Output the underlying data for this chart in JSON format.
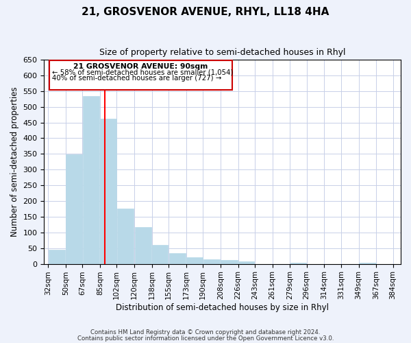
{
  "title": "21, GROSVENOR AVENUE, RHYL, LL18 4HA",
  "subtitle": "Size of property relative to semi-detached houses in Rhyl",
  "xlabel": "Distribution of semi-detached houses by size in Rhyl",
  "ylabel": "Number of semi-detached properties",
  "bar_left_edges": [
    32,
    50,
    67,
    85,
    102,
    120,
    138,
    155,
    173,
    190,
    208,
    226,
    243,
    261,
    279,
    296,
    314,
    331,
    349,
    367
  ],
  "bar_heights": [
    46,
    348,
    535,
    463,
    177,
    118,
    61,
    35,
    21,
    15,
    13,
    8,
    0,
    0,
    3,
    0,
    0,
    0,
    4,
    0
  ],
  "bar_widths": [
    18,
    17,
    18,
    17,
    18,
    18,
    17,
    18,
    17,
    18,
    18,
    17,
    18,
    18,
    17,
    18,
    17,
    18,
    18,
    17
  ],
  "bar_color": "#b8d9e8",
  "bar_edgecolor": "#b8d9e8",
  "marker_x": 90,
  "marker_color": "red",
  "ylim": [
    0,
    650
  ],
  "yticks": [
    0,
    50,
    100,
    150,
    200,
    250,
    300,
    350,
    400,
    450,
    500,
    550,
    600,
    650
  ],
  "xtick_labels": [
    "32sqm",
    "50sqm",
    "67sqm",
    "85sqm",
    "102sqm",
    "120sqm",
    "138sqm",
    "155sqm",
    "173sqm",
    "190sqm",
    "208sqm",
    "226sqm",
    "243sqm",
    "261sqm",
    "279sqm",
    "296sqm",
    "314sqm",
    "331sqm",
    "349sqm",
    "367sqm",
    "384sqm"
  ],
  "xtick_positions": [
    32,
    50,
    67,
    85,
    102,
    120,
    138,
    155,
    173,
    190,
    208,
    226,
    243,
    261,
    279,
    296,
    314,
    331,
    349,
    367,
    384
  ],
  "annotation_title": "21 GROSVENOR AVENUE: 90sqm",
  "annotation_line1": "← 58% of semi-detached houses are smaller (1,054)",
  "annotation_line2": "40% of semi-detached houses are larger (727) →",
  "footer_line1": "Contains HM Land Registry data © Crown copyright and database right 2024.",
  "footer_line2": "Contains public sector information licensed under the Open Government Licence v3.0.",
  "background_color": "#eef2fb",
  "plot_background": "#ffffff",
  "grid_color": "#c8d0e8",
  "annotation_box_facecolor": "#ffffff",
  "annotation_box_edgecolor": "#cc0000",
  "xlim_left": 28,
  "xlim_right": 392
}
